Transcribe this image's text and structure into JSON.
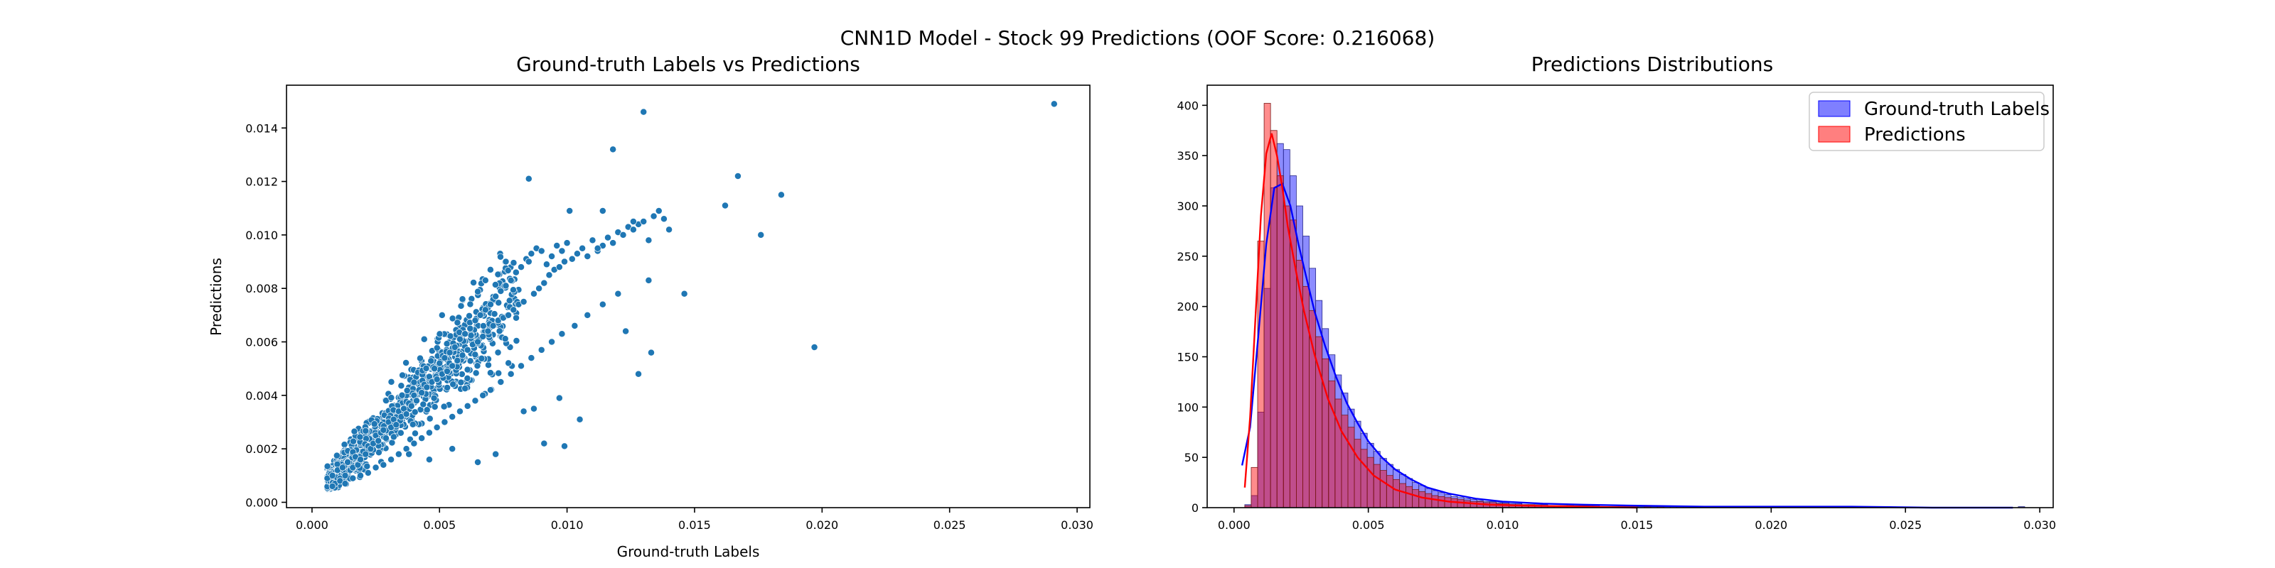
{
  "figure": {
    "suptitle": "CNN1D Model - Stock 99 Predictions (OOF Score: 0.216068)"
  },
  "chart_data": [
    {
      "type": "scatter",
      "title": "Ground-truth Labels vs Predictions",
      "xlabel": "Ground-truth Labels",
      "ylabel": "Predictions",
      "xlim": [
        -0.001,
        0.0305
      ],
      "ylim": [
        -0.0002,
        0.0156
      ],
      "xticks": [
        0.0,
        0.005,
        0.01,
        0.015,
        0.02,
        0.025,
        0.03
      ],
      "xtick_labels": [
        "0.000",
        "0.005",
        "0.010",
        "0.015",
        "0.020",
        "0.025",
        "0.030"
      ],
      "yticks": [
        0.0,
        0.002,
        0.004,
        0.006,
        0.008,
        0.01,
        0.012,
        0.014
      ],
      "ytick_labels": [
        "0.000",
        "0.002",
        "0.004",
        "0.006",
        "0.008",
        "0.010",
        "0.012",
        "0.014"
      ],
      "marker_color": "#1f77b4",
      "grid": false,
      "series": [
        {
          "x": [
            0.0006,
            0.0008,
            0.0009,
            0.001,
            0.0011,
            0.0012,
            0.0013,
            0.0014,
            0.0015,
            0.0016,
            0.0017,
            0.0018,
            0.0019,
            0.002,
            0.0021,
            0.0022,
            0.0023,
            0.0024,
            0.0025,
            0.0026,
            0.0027,
            0.0028,
            0.0029,
            0.003,
            0.0031,
            0.0032,
            0.0033,
            0.0034,
            0.0035,
            0.0036,
            0.0037,
            0.0038,
            0.0039,
            0.004,
            0.0041,
            0.0042,
            0.0043,
            0.0044,
            0.0045,
            0.0046,
            0.0047,
            0.0048,
            0.0049,
            0.005,
            0.0051,
            0.0052,
            0.0053,
            0.0054,
            0.0055,
            0.0056,
            0.0057,
            0.0058,
            0.0059,
            0.006,
            0.0061,
            0.0062,
            0.0063,
            0.0064,
            0.0065,
            0.0066,
            0.0067,
            0.0068,
            0.0069,
            0.007,
            0.0071,
            0.0072,
            0.0073,
            0.0074,
            0.0075,
            0.0076,
            0.0077,
            0.0078,
            0.0079,
            0.008,
            0.0081,
            0.0082,
            0.0083,
            0.0084,
            0.0085,
            0.0086,
            0.0087,
            0.0088,
            0.0089,
            0.009,
            0.0091,
            0.0092,
            0.0093,
            0.0094,
            0.0095,
            0.0096,
            0.0097,
            0.0098,
            0.0099,
            0.01,
            0.0102,
            0.0104,
            0.0106,
            0.0108,
            0.011,
            0.0112,
            0.0114,
            0.0116,
            0.0118,
            0.012,
            0.0122,
            0.0124,
            0.0126,
            0.0128,
            0.013,
            0.0132,
            0.0134,
            0.0136,
            0.0138,
            0.014,
            0.0146,
            0.0162,
            0.0167,
            0.0176,
            0.0184,
            0.0197,
            0.0291,
            0.0008,
            0.0011,
            0.0013,
            0.0016,
            0.0019,
            0.0022,
            0.0025,
            0.0028,
            0.0031,
            0.0034,
            0.0037,
            0.004,
            0.0043,
            0.0046,
            0.0049,
            0.0052,
            0.0055,
            0.0058,
            0.0061,
            0.0064,
            0.0067,
            0.007,
            0.0074,
            0.0078,
            0.0082,
            0.0086,
            0.009,
            0.0094,
            0.0098,
            0.0103,
            0.0108,
            0.0114,
            0.012,
            0.0085,
            0.0118,
            0.0101,
            0.013,
            0.0114,
            0.0091,
            0.0128,
            0.0087,
            0.0065,
            0.0072,
            0.0055,
            0.0046,
            0.0038,
            0.0044,
            0.0051,
            0.0059,
            0.0068,
            0.0076,
            0.0083,
            0.0097,
            0.0105,
            0.0133,
            0.0123,
            0.0132,
            0.0126,
            0.0112,
            0.0099
          ],
          "y": [
            0.0009,
            0.001,
            0.0007,
            0.0012,
            0.0009,
            0.0013,
            0.001,
            0.0015,
            0.0012,
            0.0013,
            0.0017,
            0.0014,
            0.0016,
            0.0019,
            0.0018,
            0.0021,
            0.002,
            0.0022,
            0.0025,
            0.0023,
            0.0026,
            0.0027,
            0.0024,
            0.003,
            0.0028,
            0.0031,
            0.0029,
            0.0034,
            0.0032,
            0.0035,
            0.0033,
            0.0037,
            0.0036,
            0.004,
            0.0038,
            0.0042,
            0.0041,
            0.0044,
            0.0043,
            0.0047,
            0.0045,
            0.005,
            0.0046,
            0.0052,
            0.0048,
            0.0054,
            0.0049,
            0.0056,
            0.0051,
            0.0058,
            0.0053,
            0.0061,
            0.0055,
            0.0063,
            0.0057,
            0.0065,
            0.0059,
            0.0068,
            0.006,
            0.007,
            0.0062,
            0.0072,
            0.0064,
            0.0074,
            0.0066,
            0.0077,
            0.0068,
            0.0079,
            0.0069,
            0.0081,
            0.007,
            0.0083,
            0.0072,
            0.0086,
            0.0074,
            0.0088,
            0.0075,
            0.0091,
            0.009,
            0.0093,
            0.0078,
            0.0095,
            0.008,
            0.0094,
            0.0082,
            0.0089,
            0.0085,
            0.0092,
            0.0087,
            0.0096,
            0.0088,
            0.0094,
            0.009,
            0.0097,
            0.0091,
            0.0093,
            0.0095,
            0.0092,
            0.0098,
            0.0094,
            0.0096,
            0.0099,
            0.0097,
            0.0101,
            0.01,
            0.0103,
            0.0102,
            0.0104,
            0.0105,
            0.0098,
            0.0107,
            0.0109,
            0.0106,
            0.0102,
            0.0078,
            0.0111,
            0.0122,
            0.01,
            0.0115,
            0.0058,
            0.0149,
            0.0006,
            0.0008,
            0.0007,
            0.0009,
            0.001,
            0.0011,
            0.0013,
            0.0014,
            0.0016,
            0.0018,
            0.002,
            0.0022,
            0.0024,
            0.0026,
            0.0028,
            0.003,
            0.0032,
            0.0034,
            0.0036,
            0.0038,
            0.004,
            0.0042,
            0.0045,
            0.0048,
            0.0051,
            0.0054,
            0.0057,
            0.006,
            0.0063,
            0.0066,
            0.007,
            0.0074,
            0.0078,
            0.0121,
            0.0132,
            0.0109,
            0.0146,
            0.0109,
            0.0022,
            0.0048,
            0.0035,
            0.0015,
            0.0018,
            0.002,
            0.0016,
            0.0018,
            0.0061,
            0.007,
            0.0076,
            0.0083,
            0.009,
            0.0034,
            0.0039,
            0.0031,
            0.0056,
            0.0064,
            0.0083,
            0.0105,
            0.0095,
            0.0021
          ]
        }
      ]
    },
    {
      "type": "histogram",
      "title": "Predictions Distributions",
      "xlim": [
        -0.001,
        0.0305
      ],
      "ylim": [
        0,
        420
      ],
      "xticks": [
        0.0,
        0.005,
        0.01,
        0.015,
        0.02,
        0.025,
        0.03
      ],
      "xtick_labels": [
        "0.000",
        "0.005",
        "0.010",
        "0.015",
        "0.020",
        "0.025",
        "0.030"
      ],
      "yticks": [
        0,
        50,
        100,
        150,
        200,
        250,
        300,
        350,
        400
      ],
      "ytick_labels": [
        "0",
        "50",
        "100",
        "150",
        "200",
        "250",
        "300",
        "350",
        "400"
      ],
      "grid": false,
      "legend_position": "top-right",
      "series": [
        {
          "name": "Ground-truth Labels",
          "color": "#0000ff",
          "bin_width": 0.00024,
          "bin_start": 0.0004,
          "counts": [
            3,
            12,
            95,
            218,
            318,
            362,
            356,
            330,
            300,
            270,
            238,
            206,
            178,
            152,
            132,
            114,
            98,
            86,
            74,
            64,
            56,
            49,
            43,
            38,
            33,
            29,
            25,
            22,
            19,
            17,
            15,
            13,
            11,
            10,
            9,
            8,
            7,
            6,
            6,
            5,
            5,
            4,
            4,
            3,
            3,
            3,
            3,
            2,
            2,
            2,
            2,
            2,
            2,
            2,
            2,
            1,
            1,
            1,
            1,
            1,
            1,
            1,
            1,
            1,
            1,
            1,
            1,
            1,
            1,
            1,
            1,
            0,
            1,
            0,
            1,
            0,
            0,
            1,
            0,
            0,
            0,
            0,
            1,
            0,
            0,
            0,
            0,
            0,
            0,
            0,
            0,
            0,
            0,
            0,
            0,
            0,
            0,
            0,
            0,
            0,
            0,
            0,
            0,
            0,
            0,
            0,
            0,
            0,
            0,
            0,
            0,
            0,
            0,
            0,
            0,
            0,
            0,
            0,
            0,
            0,
            1
          ]
        },
        {
          "name": "Predictions",
          "color": "#ff0000",
          "bin_width": 0.00024,
          "bin_start": 0.0004,
          "counts": [
            2,
            40,
            265,
            402,
            375,
            330,
            300,
            286,
            246,
            220,
            196,
            170,
            148,
            126,
            108,
            92,
            80,
            68,
            58,
            50,
            43,
            37,
            32,
            28,
            24,
            21,
            18,
            16,
            14,
            12,
            11,
            10,
            9,
            8,
            7,
            6,
            6,
            5,
            5,
            4,
            4,
            3,
            3,
            3,
            3,
            2,
            2,
            2,
            2,
            2,
            2,
            1,
            1,
            1,
            1,
            1,
            1,
            1,
            1,
            1,
            1,
            0,
            1,
            0,
            1,
            0,
            0,
            0,
            0,
            0,
            0,
            0,
            0,
            0,
            0,
            0,
            0,
            0,
            0,
            0,
            0,
            0,
            0,
            0,
            0,
            0,
            0,
            0,
            0,
            0,
            0,
            0,
            0,
            0,
            0,
            0,
            0,
            0,
            0,
            0,
            0,
            0,
            0,
            0,
            0,
            0,
            0,
            0,
            0,
            0,
            0,
            0,
            0,
            0,
            0,
            0,
            0,
            0,
            0,
            0,
            0
          ]
        }
      ],
      "kde": [
        {
          "name": "Ground-truth Labels",
          "x": [
            0.0003,
            0.0006,
            0.0009,
            0.0012,
            0.0015,
            0.0018,
            0.0021,
            0.0024,
            0.0027,
            0.003,
            0.0034,
            0.0038,
            0.0042,
            0.0046,
            0.005,
            0.0055,
            0.006,
            0.0066,
            0.0072,
            0.008,
            0.009,
            0.01,
            0.0115,
            0.013,
            0.015,
            0.0175,
            0.02,
            0.023,
            0.026,
            0.029
          ],
          "y": [
            42,
            80,
            170,
            262,
            318,
            322,
            300,
            262,
            228,
            195,
            160,
            130,
            104,
            84,
            66,
            50,
            38,
            28,
            20,
            14,
            9,
            6,
            4,
            3,
            2,
            1,
            1,
            1,
            0,
            0
          ]
        },
        {
          "name": "Predictions",
          "x": [
            0.0004,
            0.0006,
            0.0008,
            0.001,
            0.0012,
            0.0014,
            0.0016,
            0.0018,
            0.002,
            0.0023,
            0.0026,
            0.003,
            0.0035,
            0.004,
            0.0046,
            0.0052,
            0.006,
            0.007,
            0.008,
            0.0095,
            0.011,
            0.013,
            0.015
          ],
          "y": [
            20,
            90,
            190,
            290,
            352,
            372,
            350,
            318,
            280,
            236,
            196,
            152,
            108,
            76,
            50,
            32,
            18,
            10,
            6,
            3,
            2,
            1,
            0
          ]
        }
      ]
    }
  ]
}
